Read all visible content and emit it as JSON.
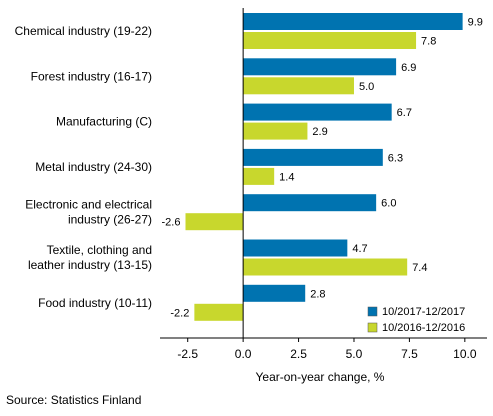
{
  "chart_data": {
    "type": "bar",
    "orientation": "horizontal",
    "categories": [
      [
        "Chemical industry (19-22)"
      ],
      [
        "Forest industry (16-17)"
      ],
      [
        "Manufacturing (C)"
      ],
      [
        "Metal industry (24-30)"
      ],
      [
        "Electronic and electrical",
        "industry (26-27)"
      ],
      [
        "Textile, clothing and",
        "leather industry (13-15)"
      ],
      [
        "Food industry (10-11)"
      ]
    ],
    "series": [
      {
        "name": "10/2017-12/2017",
        "color": "#0073b0",
        "values": [
          9.9,
          6.9,
          6.7,
          6.3,
          6.0,
          4.7,
          2.8
        ]
      },
      {
        "name": "10/2016-12/2016",
        "color": "#c8d72d",
        "values": [
          7.8,
          5.0,
          2.9,
          1.4,
          -2.6,
          7.4,
          -2.2
        ]
      }
    ],
    "xlim": [
      -3.75,
      11.0
    ],
    "xticks": [
      -2.5,
      0.0,
      2.5,
      5.0,
      7.5,
      10.0
    ],
    "xtick_labels": [
      "-2.5",
      "0.0",
      "2.5",
      "5.0",
      "7.5",
      "10.0"
    ],
    "xlabel": "Year-on-year change, %",
    "legend_position": "bottom-right",
    "grid": false
  },
  "source": "Source: Statistics Finland"
}
